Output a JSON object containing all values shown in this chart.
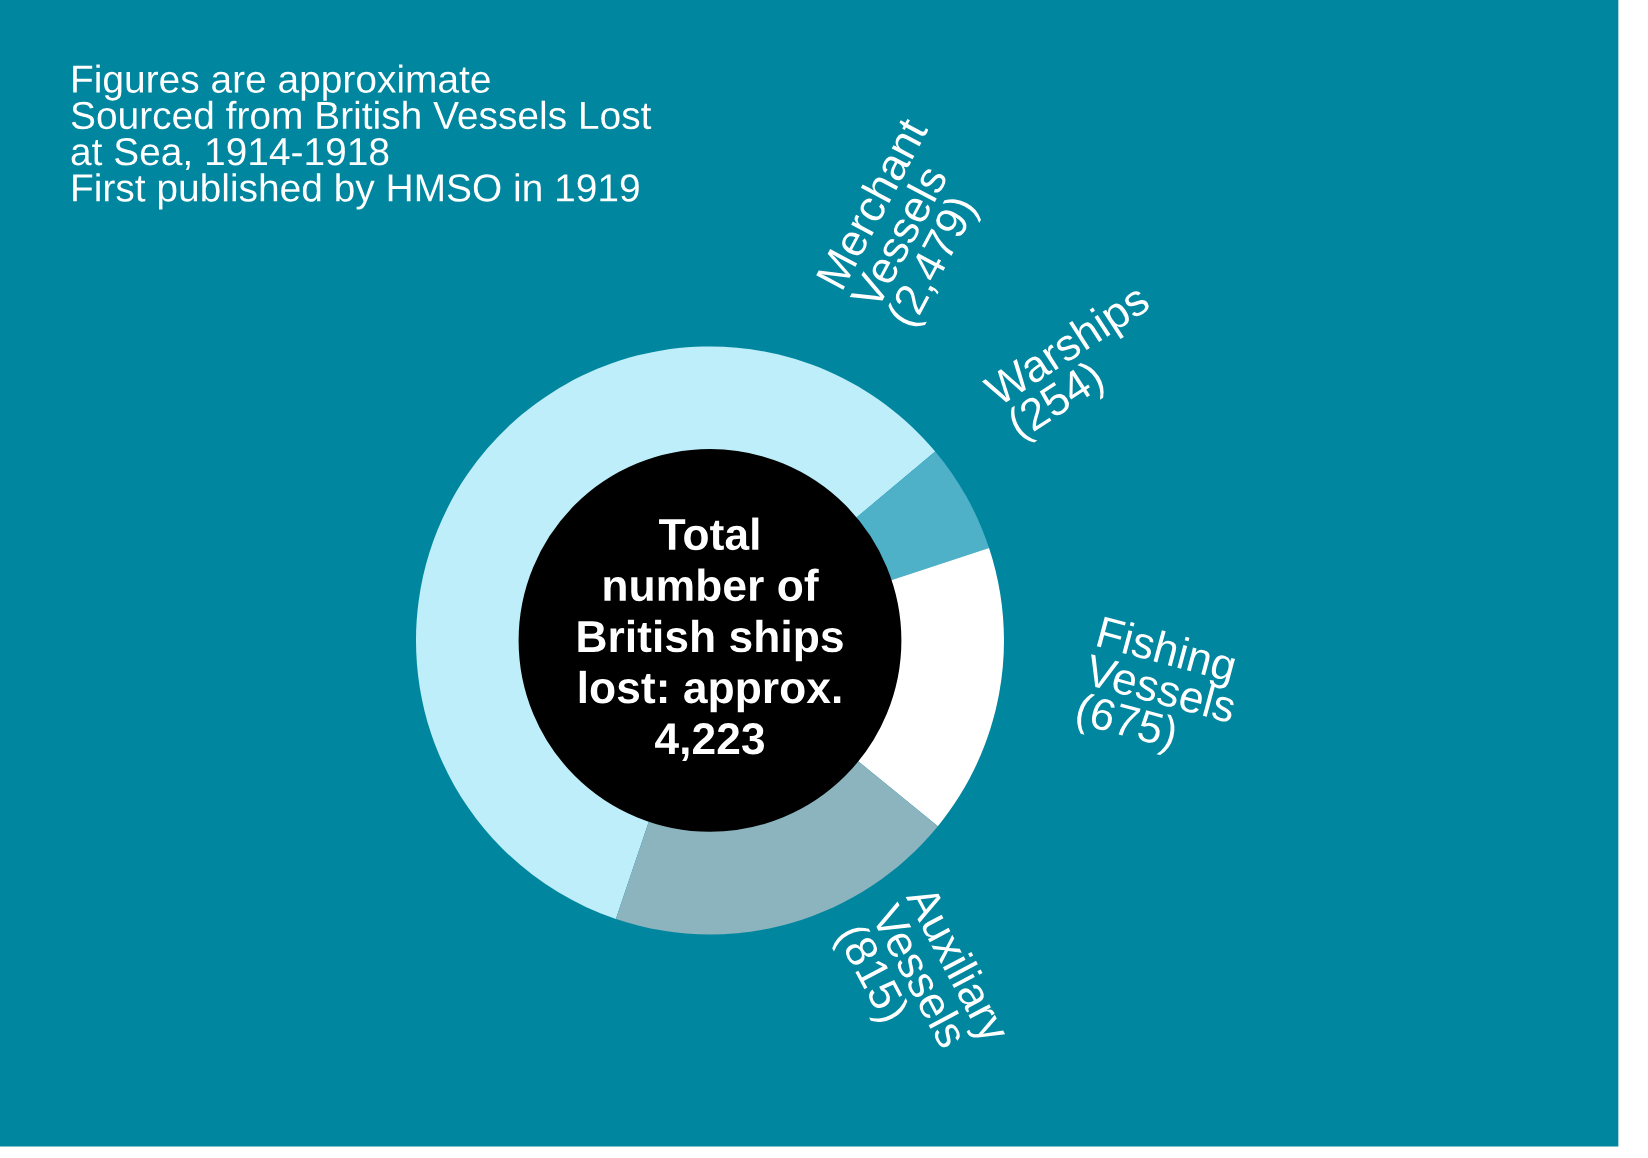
{
  "chart_data": {
    "type": "donut",
    "categories": [
      "Merchant Vessels",
      "Warships",
      "Fishing Vessels",
      "Auxiliary Vessels"
    ],
    "values": [
      2479,
      254,
      675,
      815
    ],
    "value_labels": [
      "(2,479)",
      "(254)",
      "(675)",
      "(815)"
    ],
    "colors": [
      "#bdeef9",
      "#4fb1c7",
      "#ffffff",
      "#8bb4bf"
    ],
    "annotations": [
      "Total\nnumber of\nBritish ships\nlost: approx.\n4,223",
      "Figures are approximate\nSourced from British Vessels Lost\nat Sea, 1914-1918\nFirst published by HMSO in 1919"
    ],
    "legend": false
  }
}
